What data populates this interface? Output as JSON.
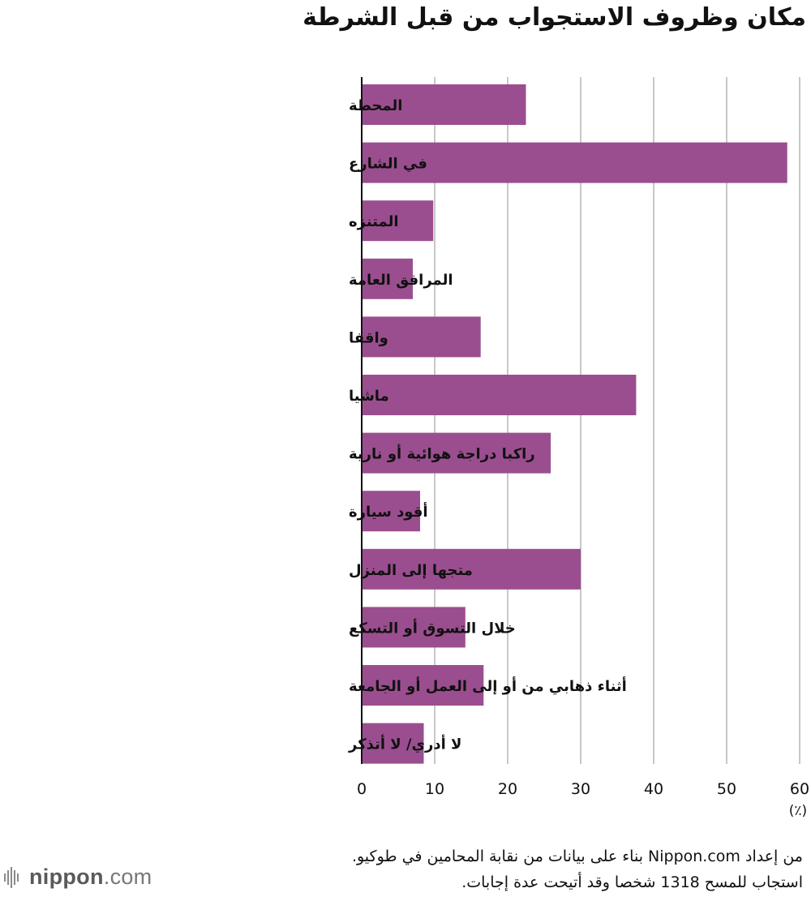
{
  "chart_data": {
    "type": "bar",
    "orientation": "horizontal",
    "title": "مكان وظروف الاستجواب من قبل الشرطة",
    "categories": [
      "المحطة",
      "في الشارع",
      "المتنزه",
      "المرافق العامة",
      "واقفا",
      "ماشيا",
      "راكبا دراجة هوائية أو نارية",
      "أقود سيارة",
      "متجها إلى المنزل",
      "خلال التسوق أو التسكع",
      "أثناء ذهابي من أو إلى العمل أو الجامعة",
      "لا أدري/ لا أتذكر"
    ],
    "values": [
      22.5,
      58.3,
      9.8,
      7.0,
      16.3,
      37.6,
      25.9,
      8.0,
      30.0,
      14.2,
      16.7,
      8.5
    ],
    "xlim": [
      0,
      60
    ],
    "xticks": [
      "0",
      "10",
      "20",
      "30",
      "40",
      "50",
      "60"
    ],
    "unit": "(٪)",
    "grid": true,
    "bar_color": "#9b4e8f"
  },
  "footnote": {
    "line1": "من إعداد Nippon.com بناء على بيانات من نقابة المحامين في طوكيو.",
    "line2": "استجاب للمسح 1318 شخصا وقد أتيحت عدة إجابات."
  },
  "brand": {
    "name": "nippon",
    "domain": ".com"
  }
}
